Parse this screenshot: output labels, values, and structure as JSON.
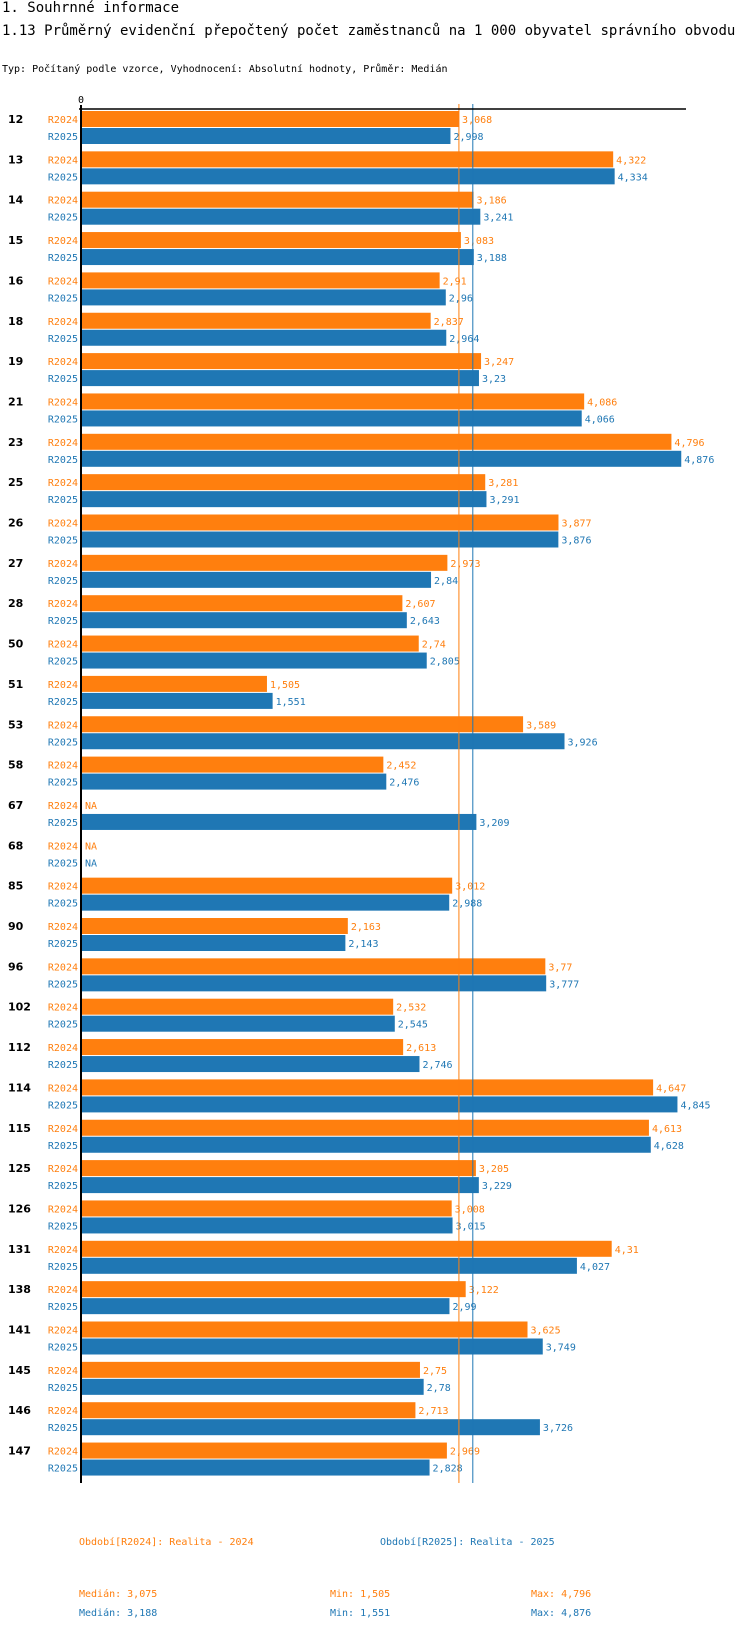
{
  "section_title": "1. Souhrnné informace",
  "chart_title": "1.13 Průměrný evidenční přepočtený počet zaměstnanců na 1 000 obyvatel správního obvodu",
  "subtitle": "Typ: Počítaný podle vzorce, Vyhodnocení: Absolutní hodnoty, Průměr: Medián",
  "colors": {
    "R2024": "#ff7f0e",
    "R2025": "#1f77b4"
  },
  "chart_data": {
    "type": "bar",
    "orientation": "horizontal",
    "title": "1.13 Průměrný evidenční přepočtený počet zaměstnanců na 1 000 obyvatel správního obvodu",
    "xlabel": "",
    "ylabel": "",
    "axis_tick_label": "0",
    "xlim": [
      0,
      5
    ],
    "categories": [
      "12",
      "13",
      "14",
      "15",
      "16",
      "18",
      "19",
      "21",
      "23",
      "25",
      "26",
      "27",
      "28",
      "50",
      "51",
      "53",
      "58",
      "67",
      "68",
      "85",
      "90",
      "96",
      "102",
      "112",
      "114",
      "115",
      "125",
      "126",
      "131",
      "138",
      "141",
      "145",
      "146",
      "147"
    ],
    "series": [
      {
        "name": "R2024",
        "values": [
          3.068,
          4.322,
          3.186,
          3.083,
          2.91,
          2.837,
          3.247,
          4.086,
          4.796,
          3.281,
          3.877,
          2.973,
          2.607,
          2.74,
          1.505,
          3.589,
          2.452,
          null,
          null,
          3.012,
          2.163,
          3.77,
          2.532,
          2.613,
          4.647,
          4.613,
          3.205,
          3.008,
          4.31,
          3.122,
          3.625,
          2.75,
          2.713,
          2.969
        ],
        "labels": [
          "3,068",
          "4,322",
          "3,186",
          "3,083",
          "2,91",
          "2,837",
          "3,247",
          "4,086",
          "4,796",
          "3,281",
          "3,877",
          "2,973",
          "2,607",
          "2,74",
          "1,505",
          "3,589",
          "2,452",
          "NA",
          "NA",
          "3,012",
          "2,163",
          "3,77",
          "2,532",
          "2,613",
          "4,647",
          "4,613",
          "3,205",
          "3,008",
          "4,31",
          "3,122",
          "3,625",
          "2,75",
          "2,713",
          "2,969"
        ]
      },
      {
        "name": "R2025",
        "values": [
          2.998,
          4.334,
          3.241,
          3.188,
          2.96,
          2.964,
          3.23,
          4.066,
          4.876,
          3.291,
          3.876,
          2.84,
          2.643,
          2.805,
          1.551,
          3.926,
          2.476,
          3.209,
          null,
          2.988,
          2.143,
          3.777,
          2.545,
          2.746,
          4.845,
          4.628,
          3.229,
          3.015,
          4.027,
          2.99,
          3.749,
          2.78,
          3.726,
          2.828
        ],
        "labels": [
          "2,998",
          "4,334",
          "3,241",
          "3,188",
          "2,96",
          "2,964",
          "3,23",
          "4,066",
          "4,876",
          "3,291",
          "3,876",
          "2,84",
          "2,643",
          "2,805",
          "1,551",
          "3,926",
          "2,476",
          "3,209",
          "NA",
          "2,988",
          "2,143",
          "3,777",
          "2,545",
          "2,746",
          "4,845",
          "4,628",
          "3,229",
          "3,015",
          "4,027",
          "2,99",
          "3,749",
          "2,78",
          "3,726",
          "2,828"
        ]
      }
    ],
    "median_lines": {
      "R2024": 3.075,
      "R2025": 3.188
    }
  },
  "legend": {
    "r2024": "Období[R2024]: Realita - 2024",
    "r2025": "Období[R2025]: Realita - 2025"
  },
  "stats": {
    "r2024": {
      "median": "Medián: 3,075",
      "min": "Min: 1,505",
      "max": "Max: 4,796"
    },
    "r2025": {
      "median": "Medián: 3,188",
      "min": "Min: 1,551",
      "max": "Max: 4,876"
    }
  }
}
